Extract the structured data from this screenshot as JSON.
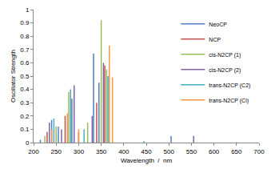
{
  "chart_data": {
    "type": "stick",
    "x_label": "Wavelength  /  nm",
    "y_label": "Oscillator Strength",
    "xlim": [
      200,
      700
    ],
    "xticks": [
      200,
      250,
      300,
      350,
      400,
      450,
      500,
      550,
      600,
      650,
      700
    ],
    "ylim": [
      0,
      1
    ],
    "yticks": [
      0,
      0.1,
      0.2,
      0.3,
      0.4,
      0.5,
      0.6,
      0.7,
      0.8,
      0.9,
      1
    ],
    "grid": false,
    "legend": "top right",
    "series": [
      {
        "name": "NeoCP",
        "color": "#4f81bd",
        "x": [
          215,
          240,
          255,
          285,
          333,
          345,
          505
        ],
        "values": [
          0.02,
          0.17,
          0.12,
          0.33,
          0.67,
          0.45,
          0.05
        ]
      },
      {
        "name": "NCP",
        "color": "#c0504d",
        "x": [
          230,
          270,
          300,
          340,
          358
        ],
        "values": [
          0.08,
          0.2,
          0.08,
          0.3,
          0.58
        ]
      },
      {
        "name": "cis-N2CP (1)",
        "color": "#9bbb59",
        "x": [
          225,
          250,
          278,
          320,
          350,
          362
        ],
        "values": [
          0.05,
          0.12,
          0.38,
          0.15,
          0.92,
          0.55
        ]
      },
      {
        "name": "cis-N2CP (2)",
        "color": "#8064a2",
        "x": [
          235,
          262,
          290,
          330,
          355,
          555
        ],
        "values": [
          0.15,
          0.1,
          0.43,
          0.2,
          0.6,
          0.05
        ]
      },
      {
        "name": "trans-N2CP (C2)",
        "color": "#4bacc6",
        "x": [
          245,
          282,
          312,
          365,
          445
        ],
        "values": [
          0.18,
          0.4,
          0.1,
          0.5,
          0.01
        ]
      },
      {
        "name": "trans-N2CP (Ci)",
        "color": "#f79646",
        "x": [
          240,
          275,
          300,
          368,
          375,
          650
        ],
        "values": [
          0.1,
          0.22,
          0.1,
          0.73,
          0.49,
          0.005
        ]
      }
    ]
  }
}
